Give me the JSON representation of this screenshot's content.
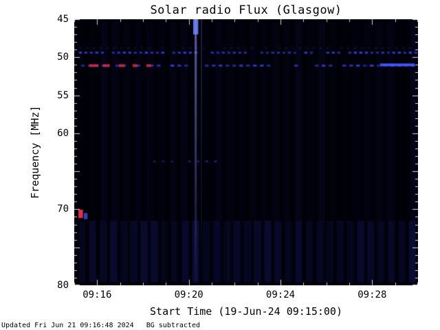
{
  "page": {
    "background": "#ffffff"
  },
  "status_bar": {
    "text": "Updated Fri Jun 21 09:16:48 2024   BG subtracted"
  },
  "chart_data": {
    "type": "heatmap",
    "title": "Solar radio Flux (Glasgow)",
    "xlabel": "Start Time (19-Jun-24 09:15:00)",
    "ylabel": "Frequency [MHz]",
    "background": "#000008",
    "tick_color": "#ffffff",
    "x_axis": {
      "t_min": 15,
      "t_max": 30,
      "tick_minutes": [
        16,
        20,
        24,
        28
      ],
      "tick_labels": [
        "09:16",
        "09:20",
        "09:24",
        "09:28"
      ],
      "minor_tick_minutes": 1
    },
    "y_axis": {
      "f_min": 45,
      "f_max": 80,
      "tick_values": [
        45,
        50,
        55,
        60,
        70,
        80
      ],
      "minor_tick_step": 1,
      "major_tick_step": 5
    },
    "features": [
      {
        "kind": "stripes",
        "t0": 15.15,
        "t1": 29.9,
        "f0": 45.3,
        "f1": 79.7,
        "spacing": 0.5,
        "width": 0.3,
        "color": "10,10,45",
        "alpha_min": 0.1,
        "alpha_max": 0.4
      },
      {
        "kind": "stripes",
        "t0": 15.2,
        "t1": 29.9,
        "f0": 71.5,
        "f1": 79.6,
        "spacing": 0.45,
        "width": 0.3,
        "color": "18,18,80",
        "alpha_min": 0.2,
        "alpha_max": 0.55
      },
      {
        "kind": "dashband",
        "freq": 49.4,
        "t0": 15.2,
        "t1": 29.9,
        "period": 0.24,
        "duty": 0.55,
        "thickness": 3,
        "color": "45,70,230",
        "alpha": 0.9
      },
      {
        "kind": "dashband",
        "freq": 48.8,
        "t0": 15.2,
        "t1": 29.9,
        "period": 0.3,
        "duty": 0.4,
        "thickness": 2,
        "color": "25,35,150",
        "alpha": 0.45
      },
      {
        "kind": "dashband",
        "freq": 51.1,
        "t0": 15.3,
        "t1": 29.9,
        "period": 0.3,
        "duty": 0.55,
        "thickness": 3,
        "color": "55,70,235",
        "alpha": 0.85
      },
      {
        "kind": "segments",
        "freq": 51.1,
        "thickness": 4,
        "color": "210,45,70",
        "alpha": 0.9,
        "spans": [
          [
            15.65,
            16.05
          ],
          [
            16.25,
            16.55
          ],
          [
            16.95,
            17.2
          ],
          [
            17.55,
            17.75
          ],
          [
            18.15,
            18.35
          ]
        ]
      },
      {
        "kind": "segments",
        "freq": 51.0,
        "thickness": 4,
        "color": "70,90,255",
        "alpha": 0.95,
        "spans": [
          [
            28.35,
            29.85
          ]
        ]
      },
      {
        "kind": "vline",
        "t": 20.3,
        "width": 3,
        "color": "130,130,210",
        "alpha_top": 0.75,
        "alpha_bottom": 0.04
      },
      {
        "kind": "vline",
        "t": 20.55,
        "width": 2,
        "color": "90,90,170",
        "alpha_top": 0.35,
        "alpha_bottom": 0.02
      },
      {
        "kind": "blob",
        "t": 20.3,
        "freq": 45.9,
        "w": 0.22,
        "h": 2.2,
        "color": "110,130,240",
        "alpha": 0.9
      },
      {
        "kind": "dashband",
        "freq": 63.7,
        "t0": 18.45,
        "t1": 21.3,
        "period": 0.38,
        "duty": 0.3,
        "thickness": 2,
        "color": "55,65,210",
        "alpha": 0.7
      },
      {
        "kind": "blob",
        "t": 15.28,
        "freq": 70.6,
        "w": 0.2,
        "h": 1.1,
        "color": "225,55,70",
        "alpha": 0.95
      },
      {
        "kind": "blob",
        "t": 15.5,
        "freq": 70.9,
        "w": 0.16,
        "h": 0.8,
        "color": "70,80,230",
        "alpha": 0.8
      }
    ]
  }
}
